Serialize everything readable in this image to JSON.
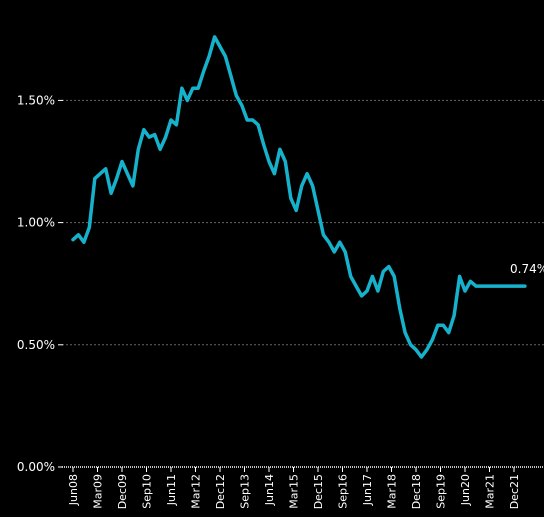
{
  "colors": {
    "background": "#000000",
    "series": "#16b2cc",
    "grid": "#666666",
    "text": "#ffffff"
  },
  "chart_data": {
    "type": "line",
    "title": "",
    "xlabel": "",
    "ylabel": "",
    "ylim": [
      0,
      1.8
    ],
    "y_ticks": [
      {
        "value": 0.0,
        "label": "0.00%"
      },
      {
        "value": 0.5,
        "label": "0.50%"
      },
      {
        "value": 1.0,
        "label": "1.00%"
      },
      {
        "value": 1.5,
        "label": "1.50%"
      }
    ],
    "x_tick_labels": [
      "Jun08",
      "Mar09",
      "Dec09",
      "Sep10",
      "Jun11",
      "Mar12",
      "Dec12",
      "Sep13",
      "Jun14",
      "Mar15",
      "Dec15",
      "Sep16",
      "Jun17",
      "Mar18",
      "Dec18",
      "Sep19",
      "Jun20",
      "Mar21",
      "Dec21"
    ],
    "grid": "horizontal dashed",
    "end_label": "0.74%",
    "series": [
      {
        "color": "#16b2cc",
        "x": [
          "2008-06",
          "2008-08",
          "2008-10",
          "2008-12",
          "2009-02",
          "2009-04",
          "2009-06",
          "2009-08",
          "2009-10",
          "2009-12",
          "2010-02",
          "2010-04",
          "2010-06",
          "2010-08",
          "2010-10",
          "2010-12",
          "2011-02",
          "2011-04",
          "2011-06",
          "2011-08",
          "2011-10",
          "2011-12",
          "2012-02",
          "2012-04",
          "2012-06",
          "2012-08",
          "2012-10",
          "2012-12",
          "2013-02",
          "2013-04",
          "2013-06",
          "2013-08",
          "2013-10",
          "2013-12",
          "2014-02",
          "2014-04",
          "2014-06",
          "2014-08",
          "2014-10",
          "2014-12",
          "2015-02",
          "2015-04",
          "2015-06",
          "2015-08",
          "2015-10",
          "2015-12",
          "2016-02",
          "2016-04",
          "2016-06",
          "2016-08",
          "2016-10",
          "2016-12",
          "2017-02",
          "2017-04",
          "2017-06",
          "2017-08",
          "2017-10",
          "2017-12",
          "2018-02",
          "2018-04",
          "2018-06",
          "2018-08",
          "2018-10",
          "2018-12",
          "2019-02",
          "2019-04",
          "2019-06",
          "2019-08",
          "2019-10",
          "2019-12",
          "2020-02",
          "2020-04",
          "2020-06",
          "2020-08",
          "2020-10",
          "2020-12",
          "2021-02",
          "2021-04",
          "2021-06",
          "2021-08",
          "2021-10",
          "2021-12",
          "2022-02",
          "2022-04"
        ],
        "values": [
          0.93,
          0.95,
          0.92,
          0.98,
          1.18,
          1.2,
          1.22,
          1.12,
          1.18,
          1.25,
          1.2,
          1.15,
          1.3,
          1.38,
          1.35,
          1.36,
          1.3,
          1.35,
          1.42,
          1.4,
          1.55,
          1.5,
          1.55,
          1.55,
          1.62,
          1.68,
          1.76,
          1.72,
          1.68,
          1.6,
          1.52,
          1.48,
          1.42,
          1.42,
          1.4,
          1.32,
          1.25,
          1.2,
          1.3,
          1.25,
          1.1,
          1.05,
          1.15,
          1.2,
          1.15,
          1.05,
          0.95,
          0.92,
          0.88,
          0.92,
          0.88,
          0.78,
          0.74,
          0.7,
          0.72,
          0.78,
          0.72,
          0.8,
          0.82,
          0.78,
          0.65,
          0.55,
          0.5,
          0.48,
          0.45,
          0.48,
          0.52,
          0.58,
          0.58,
          0.55,
          0.62,
          0.78,
          0.72,
          0.76,
          0.74,
          0.74,
          0.74,
          0.74,
          0.74,
          0.74,
          0.74,
          0.74,
          0.74,
          0.74
        ],
        "end_value": 0.74
      }
    ]
  }
}
